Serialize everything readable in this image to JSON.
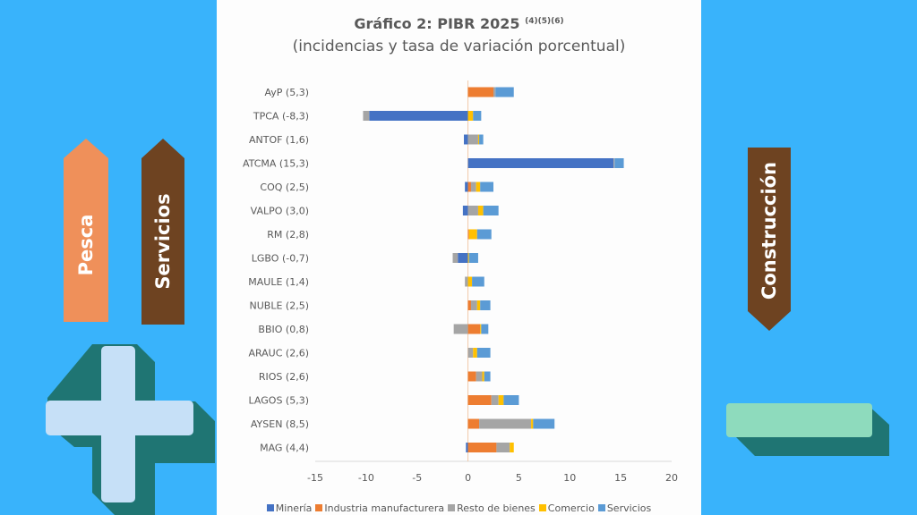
{
  "decor": {
    "left_arrows": [
      {
        "label": "Pesca",
        "color": "#ef905a"
      },
      {
        "label": "Servicios",
        "color": "#6e4321"
      }
    ],
    "right_arrow": {
      "label": "Construcción",
      "color": "#6e4321"
    },
    "plus_icon": {
      "face": "#c6e0f7",
      "shadow": "#1f7573"
    },
    "minus_icon": {
      "face": "#8edbbd",
      "shadow": "#1f7573"
    }
  },
  "chart_data": {
    "type": "bar",
    "orientation": "horizontal",
    "stacked": true,
    "title": "Gráfico 2: PIBR 2025",
    "title_superscript": "(4)(5)(6)",
    "subtitle": "(incidencias y tasa de variación porcentual)",
    "xlabel": "",
    "ylabel": "",
    "xlim": [
      -15,
      20
    ],
    "xticks": [
      "-15",
      "-10",
      "-5",
      "0",
      "5",
      "10",
      "15",
      "20"
    ],
    "grid": false,
    "legend_position": "bottom",
    "categories": [
      "AyP (5,3)",
      "TPCA (-8,3)",
      "ANTOF (1,6)",
      "ATCMA (15,3)",
      "COQ (2,5)",
      "VALPO (3,0)",
      "RM (2,8)",
      "LGBO (-0,7)",
      "MAULE (1,4)",
      "NUBLE (2,5)",
      "BBIO (0,8)",
      "ARAUC (2,6)",
      "RIOS (2,6)",
      "LAGOS (5,3)",
      "AYSEN (8,5)",
      "MAG (4,4)"
    ],
    "series": [
      {
        "name": "Minería",
        "color": "#4472c4",
        "values": [
          0.0,
          -9.7,
          -0.4,
          14.3,
          -0.3,
          -0.5,
          0.0,
          -1.0,
          0.0,
          0.0,
          0.0,
          0.0,
          0.0,
          0.0,
          0.0,
          -0.2
        ]
      },
      {
        "name": "Industria manufacturera",
        "color": "#ed7d31",
        "values": [
          2.5,
          0.0,
          0.0,
          0.0,
          0.3,
          0.0,
          0.1,
          0.0,
          0.0,
          0.3,
          1.2,
          0.0,
          0.8,
          2.3,
          1.1,
          2.8
        ]
      },
      {
        "name": "Resto de bienes",
        "color": "#a5a5a5",
        "values": [
          0.2,
          -0.6,
          1.0,
          0.1,
          0.5,
          1.0,
          0.0,
          -0.5,
          -0.3,
          0.6,
          -1.4,
          0.5,
          0.6,
          0.7,
          5.1,
          1.3
        ]
      },
      {
        "name": "Comercio",
        "color": "#ffc000",
        "values": [
          0.0,
          0.5,
          0.1,
          0.0,
          0.4,
          0.5,
          0.8,
          0.1,
          0.4,
          0.3,
          0.1,
          0.4,
          0.2,
          0.5,
          0.2,
          0.4
        ]
      },
      {
        "name": "Servicios",
        "color": "#5b9bd5",
        "values": [
          1.8,
          0.8,
          0.4,
          0.9,
          1.3,
          1.5,
          1.4,
          0.9,
          1.2,
          1.0,
          0.7,
          1.3,
          0.6,
          1.5,
          2.1,
          0.0
        ]
      }
    ]
  }
}
